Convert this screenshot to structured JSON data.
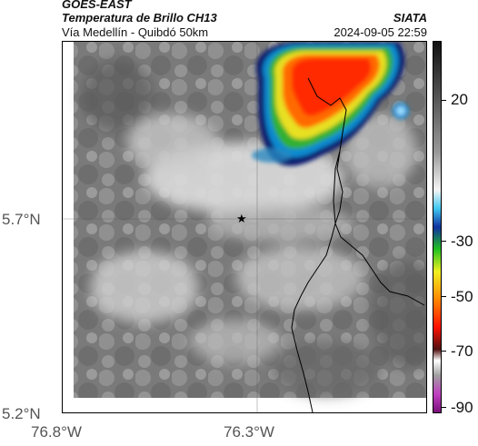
{
  "header": {
    "satellite": "GOES-EAST",
    "product": "Temperatura de Brillo CH13",
    "region": "Vía Medellín - Quibdó 50km",
    "org": "SIATA",
    "timestamp": "2024-09-05 22:59"
  },
  "axes": {
    "lat_labels": [
      "5.7°N",
      "5.2°N"
    ],
    "lon_labels": [
      "76.8°W",
      "76.3°W"
    ]
  },
  "colorbar": {
    "labels": [
      "20",
      "-30",
      "-50",
      "-70",
      "-90"
    ]
  },
  "map": {
    "marker": "star-icon",
    "colors": {
      "cold_core": "#ff3000",
      "cloud_edge": "#0a2a8a",
      "background_gray": "#7d7d7d"
    }
  }
}
